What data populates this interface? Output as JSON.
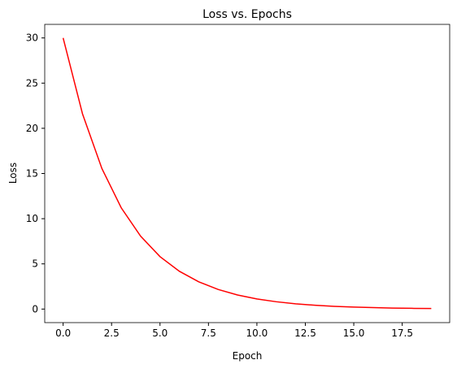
{
  "chart_data": {
    "type": "line",
    "title": "Loss vs. Epochs",
    "x_label": "Epoch",
    "y_label": "Loss",
    "x": [
      0,
      1,
      2,
      3,
      4,
      5,
      6,
      7,
      8,
      9,
      10,
      11,
      12,
      13,
      14,
      15,
      16,
      17,
      18,
      19
    ],
    "series": [
      {
        "name": "Loss",
        "color": "#ff0000",
        "values": [
          30,
          21.6,
          15.55,
          11.2,
          8.06,
          5.8,
          4.18,
          3.01,
          2.17,
          1.56,
          1.12,
          0.81,
          0.58,
          0.42,
          0.3,
          0.22,
          0.16,
          0.11,
          0.08,
          0.06
        ]
      }
    ],
    "xlim": [
      -0.95,
      19.95
    ],
    "ylim": [
      -1.5,
      31.5
    ],
    "xticks": [
      {
        "value": 0,
        "label": "0.0"
      },
      {
        "value": 2.5,
        "label": "2.5"
      },
      {
        "value": 5,
        "label": "5.0"
      },
      {
        "value": 7.5,
        "label": "7.5"
      },
      {
        "value": 10,
        "label": "10.0"
      },
      {
        "value": 12.5,
        "label": "12.5"
      },
      {
        "value": 15,
        "label": "15.0"
      },
      {
        "value": 17.5,
        "label": "17.5"
      }
    ],
    "yticks": [
      0,
      5,
      10,
      15,
      20,
      25,
      30
    ]
  }
}
